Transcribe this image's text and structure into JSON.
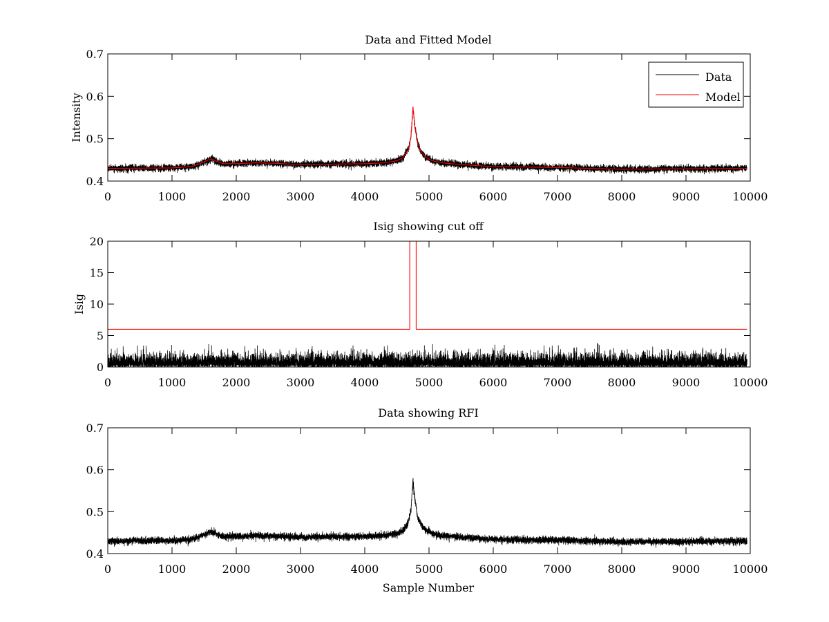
{
  "chart_data": [
    {
      "type": "line",
      "title": "Data and Fitted Model",
      "xlabel": "",
      "ylabel": "Intensity",
      "xlim": [
        0,
        10000
      ],
      "ylim": [
        0.4,
        0.7
      ],
      "xticks": [
        0,
        1000,
        2000,
        3000,
        4000,
        5000,
        6000,
        7000,
        8000,
        9000,
        10000
      ],
      "yticks": [
        0.4,
        0.5,
        0.6,
        0.7
      ],
      "ytick_labels": [
        "0.4",
        "0.5",
        "0.6",
        "0.7"
      ],
      "legend": {
        "position": "top-right",
        "entries": [
          "Data",
          "Model"
        ]
      },
      "series": [
        {
          "name": "Data",
          "color": "#000000",
          "style": "noisy",
          "noise": 0.004,
          "n_samples": 9950
        },
        {
          "name": "Model",
          "color": "#ff0000",
          "style": "smooth",
          "n_samples": 9950
        }
      ],
      "profile": {
        "x": [
          0,
          1000,
          1300,
          1450,
          1550,
          1620,
          1700,
          1800,
          2000,
          2300,
          2600,
          3000,
          3500,
          4000,
          4300,
          4500,
          4600,
          4680,
          4720,
          4750,
          4780,
          4820,
          4880,
          4950,
          5050,
          5200,
          5500,
          6000,
          7000,
          8000,
          9000,
          9950
        ],
        "y": [
          0.43,
          0.431,
          0.434,
          0.442,
          0.449,
          0.452,
          0.446,
          0.441,
          0.441,
          0.443,
          0.442,
          0.439,
          0.44,
          0.441,
          0.443,
          0.448,
          0.456,
          0.475,
          0.505,
          0.575,
          0.53,
          0.49,
          0.468,
          0.456,
          0.448,
          0.443,
          0.439,
          0.434,
          0.432,
          0.428,
          0.429,
          0.43
        ]
      }
    },
    {
      "type": "line",
      "title": "Isig showing cut off",
      "xlabel": "",
      "ylabel": "Isig",
      "xlim": [
        0,
        10000
      ],
      "ylim": [
        0,
        20
      ],
      "xticks": [
        0,
        1000,
        2000,
        3000,
        4000,
        5000,
        6000,
        7000,
        8000,
        9000,
        10000
      ],
      "yticks": [
        0,
        5,
        10,
        15,
        20
      ],
      "ytick_labels": [
        "0",
        "5",
        "10",
        "15",
        "20"
      ],
      "series": [
        {
          "name": "Isig",
          "color": "#000000",
          "style": "spiky",
          "typical_max": 2.5,
          "peak_max": 3.8,
          "n_samples": 9950
        },
        {
          "name": "Cut off",
          "color": "#ff0000",
          "style": "step",
          "x": [
            0,
            4700,
            4700,
            4800,
            4800,
            9950
          ],
          "y": [
            6,
            6,
            20,
            20,
            6,
            6
          ]
        }
      ]
    },
    {
      "type": "line",
      "title": "Data showing RFI",
      "xlabel": "Sample Number",
      "ylabel": "",
      "xlim": [
        0,
        10000
      ],
      "ylim": [
        0.4,
        0.7
      ],
      "xticks": [
        0,
        1000,
        2000,
        3000,
        4000,
        5000,
        6000,
        7000,
        8000,
        9000,
        10000
      ],
      "yticks": [
        0.4,
        0.5,
        0.6,
        0.7
      ],
      "ytick_labels": [
        "0.4",
        "0.5",
        "0.6",
        "0.7"
      ],
      "series": [
        {
          "name": "Data",
          "color": "#000000",
          "style": "noisy",
          "noise": 0.004,
          "n_samples": 9950
        }
      ],
      "profile": {
        "x": [
          0,
          1000,
          1300,
          1450,
          1550,
          1620,
          1700,
          1800,
          2000,
          2300,
          2600,
          3000,
          3500,
          4000,
          4300,
          4500,
          4600,
          4680,
          4720,
          4750,
          4780,
          4820,
          4880,
          4950,
          5050,
          5200,
          5500,
          6000,
          7000,
          8000,
          9000,
          9950
        ],
        "y": [
          0.43,
          0.431,
          0.434,
          0.442,
          0.449,
          0.452,
          0.446,
          0.441,
          0.441,
          0.443,
          0.442,
          0.439,
          0.44,
          0.441,
          0.443,
          0.448,
          0.456,
          0.475,
          0.505,
          0.575,
          0.53,
          0.49,
          0.468,
          0.456,
          0.448,
          0.443,
          0.439,
          0.434,
          0.432,
          0.428,
          0.429,
          0.43
        ]
      }
    }
  ]
}
